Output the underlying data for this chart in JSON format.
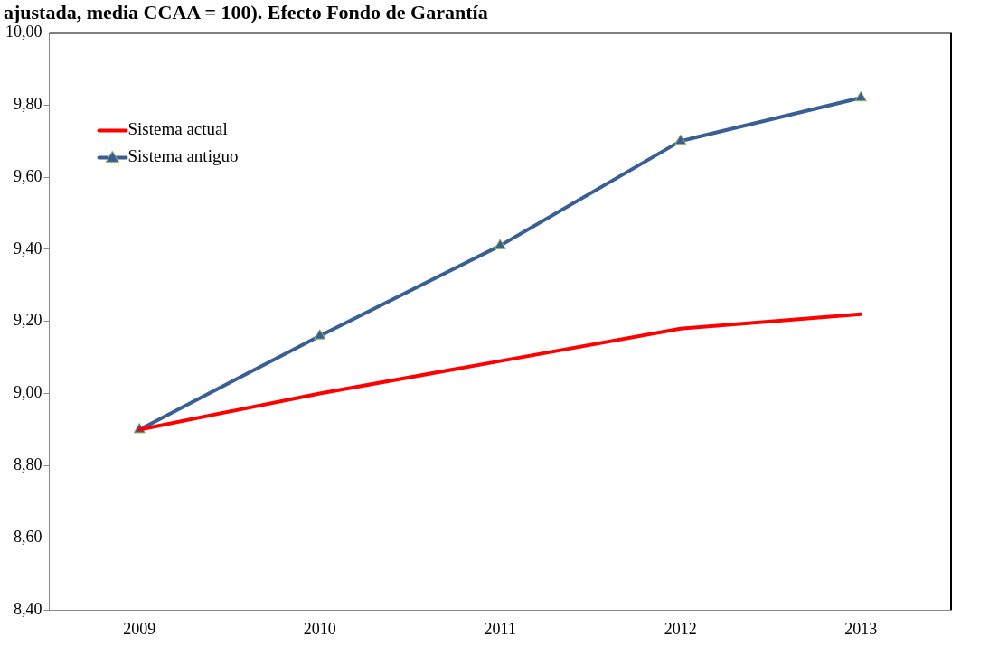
{
  "chart_data": {
    "type": "line",
    "title": "ajustada, media CCAA = 100). Efecto Fondo de Garantía",
    "categories": [
      "2009",
      "2010",
      "2011",
      "2012",
      "2013"
    ],
    "series": [
      {
        "name": "Sistema actual",
        "color": "#ff0000",
        "marker": "none",
        "values": [
          8.9,
          9.0,
          9.09,
          9.18,
          9.22
        ]
      },
      {
        "name": "Sistema antiguo",
        "color": "#3a5f94",
        "marker": "triangle",
        "values": [
          8.9,
          9.16,
          9.41,
          9.7,
          9.82
        ]
      }
    ],
    "ylim": [
      8.4,
      10.0
    ],
    "yticks": [
      {
        "value": 8.4,
        "label": "8,40"
      },
      {
        "value": 8.6,
        "label": "8,60"
      },
      {
        "value": 8.8,
        "label": "8,80"
      },
      {
        "value": 9.0,
        "label": "9,00"
      },
      {
        "value": 9.2,
        "label": "9,20"
      },
      {
        "value": 9.4,
        "label": "9,40"
      },
      {
        "value": 9.6,
        "label": "9,60"
      },
      {
        "value": 9.8,
        "label": "9,80"
      },
      {
        "value": 10.0,
        "label": "10,00"
      }
    ],
    "grid": false,
    "legend": "top left",
    "line_style": "solid"
  }
}
